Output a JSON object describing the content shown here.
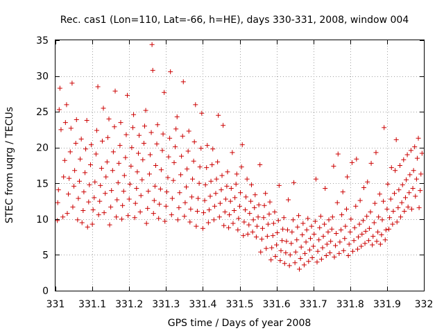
{
  "chart_data": {
    "type": "scatter",
    "title": "Rec. cas1 (Lon=110, Lat=-66, h=HE), days 330-331, 2008, window 004",
    "xlabel": "GPS time / Days of year 2008",
    "ylabel": "STEC from uqrg / TECUs",
    "xlim": [
      331,
      332
    ],
    "ylim": [
      0,
      35
    ],
    "xticks": [
      "331",
      "331.1",
      "331.2",
      "331.3",
      "331.4",
      "331.5",
      "331.6",
      "331.7",
      "331.8",
      "331.9",
      "332"
    ],
    "yticks": [
      "0",
      "5",
      "10",
      "15",
      "20",
      "25",
      "30",
      "35"
    ],
    "grid": true,
    "marker": "plus",
    "color": "#cc0000",
    "points": [
      [
        331.005,
        9.8
      ],
      [
        331.006,
        12.3
      ],
      [
        331.008,
        14.1
      ],
      [
        331.01,
        25.3
      ],
      [
        331.012,
        28.3
      ],
      [
        331.015,
        22.5
      ],
      [
        331.02,
        10.3
      ],
      [
        331.022,
        15.9
      ],
      [
        331.025,
        18.2
      ],
      [
        331.027,
        23.5
      ],
      [
        331.03,
        26.0
      ],
      [
        331.032,
        10.8
      ],
      [
        331.035,
        13.5
      ],
      [
        331.037,
        15.7
      ],
      [
        331.04,
        19.4
      ],
      [
        331.042,
        22.7
      ],
      [
        331.045,
        29.0
      ],
      [
        331.047,
        11.7
      ],
      [
        331.05,
        14.6
      ],
      [
        331.052,
        16.8
      ],
      [
        331.055,
        20.6
      ],
      [
        331.057,
        23.9
      ],
      [
        331.06,
        9.9
      ],
      [
        331.062,
        12.9
      ],
      [
        331.065,
        15.3
      ],
      [
        331.067,
        18.4
      ],
      [
        331.07,
        21.2
      ],
      [
        331.072,
        9.5
      ],
      [
        331.075,
        11.2
      ],
      [
        331.077,
        13.8
      ],
      [
        331.08,
        16.5
      ],
      [
        331.082,
        19.8
      ],
      [
        331.085,
        23.8
      ],
      [
        331.087,
        8.9
      ],
      [
        331.09,
        12.4
      ],
      [
        331.092,
        14.8
      ],
      [
        331.095,
        17.6
      ],
      [
        331.097,
        20.4
      ],
      [
        331.1,
        9.3
      ],
      [
        331.102,
        11.3
      ],
      [
        331.105,
        13.0
      ],
      [
        331.107,
        15.2
      ],
      [
        331.11,
        19.1
      ],
      [
        331.112,
        22.4
      ],
      [
        331.115,
        28.5
      ],
      [
        331.117,
        10.6
      ],
      [
        331.12,
        12.5
      ],
      [
        331.122,
        14.7
      ],
      [
        331.125,
        17.1
      ],
      [
        331.127,
        20.9
      ],
      [
        331.13,
        25.5
      ],
      [
        331.132,
        10.9
      ],
      [
        331.135,
        13.6
      ],
      [
        331.137,
        15.9
      ],
      [
        331.14,
        18.0
      ],
      [
        331.142,
        21.4
      ],
      [
        331.145,
        24.0
      ],
      [
        331.147,
        9.2
      ],
      [
        331.15,
        11.7
      ],
      [
        331.152,
        14.0
      ],
      [
        331.155,
        16.8
      ],
      [
        331.157,
        19.4
      ],
      [
        331.16,
        22.9
      ],
      [
        331.162,
        27.9
      ],
      [
        331.165,
        10.3
      ],
      [
        331.167,
        12.7
      ],
      [
        331.17,
        15.1
      ],
      [
        331.172,
        17.8
      ],
      [
        331.175,
        20.3
      ],
      [
        331.177,
        23.5
      ],
      [
        331.18,
        10.0
      ],
      [
        331.182,
        11.9
      ],
      [
        331.185,
        13.9
      ],
      [
        331.187,
        16.1
      ],
      [
        331.19,
        18.6
      ],
      [
        331.192,
        21.8
      ],
      [
        331.195,
        27.3
      ],
      [
        331.197,
        10.5
      ],
      [
        331.2,
        12.8
      ],
      [
        331.202,
        14.9
      ],
      [
        331.205,
        17.4
      ],
      [
        331.207,
        20.0
      ],
      [
        331.21,
        22.8
      ],
      [
        331.212,
        24.6
      ],
      [
        331.215,
        10.2
      ],
      [
        331.217,
        12.2
      ],
      [
        331.22,
        14.3
      ],
      [
        331.222,
        16.6
      ],
      [
        331.225,
        19.2
      ],
      [
        331.227,
        21.7
      ],
      [
        331.23,
        11.0
      ],
      [
        331.232,
        13.3
      ],
      [
        331.235,
        15.5
      ],
      [
        331.237,
        18.3
      ],
      [
        331.24,
        20.6
      ],
      [
        331.242,
        23.0
      ],
      [
        331.245,
        25.2
      ],
      [
        331.247,
        9.4
      ],
      [
        331.25,
        11.5
      ],
      [
        331.252,
        13.9
      ],
      [
        331.255,
        16.3
      ],
      [
        331.257,
        19.0
      ],
      [
        331.26,
        22.1
      ],
      [
        331.262,
        34.4
      ],
      [
        331.264,
        30.8
      ],
      [
        331.266,
        10.8
      ],
      [
        331.268,
        12.6
      ],
      [
        331.27,
        14.6
      ],
      [
        331.272,
        17.5
      ],
      [
        331.275,
        20.5
      ],
      [
        331.277,
        23.2
      ],
      [
        331.28,
        10.1
      ],
      [
        331.282,
        12.1
      ],
      [
        331.285,
        14.2
      ],
      [
        331.287,
        16.9
      ],
      [
        331.29,
        19.6
      ],
      [
        331.292,
        21.9
      ],
      [
        331.295,
        27.7
      ],
      [
        331.297,
        9.7
      ],
      [
        331.3,
        11.8
      ],
      [
        331.302,
        13.8
      ],
      [
        331.305,
        15.8
      ],
      [
        331.307,
        18.7
      ],
      [
        331.31,
        21.3
      ],
      [
        331.312,
        30.6
      ],
      [
        331.315,
        10.6
      ],
      [
        331.317,
        12.9
      ],
      [
        331.32,
        15.4
      ],
      [
        331.322,
        17.9
      ],
      [
        331.325,
        20.1
      ],
      [
        331.327,
        22.6
      ],
      [
        331.33,
        24.3
      ],
      [
        331.332,
        9.9
      ],
      [
        331.335,
        11.6
      ],
      [
        331.337,
        13.7
      ],
      [
        331.34,
        16.2
      ],
      [
        331.342,
        18.8
      ],
      [
        331.345,
        21.6
      ],
      [
        331.347,
        29.2
      ],
      [
        331.35,
        10.4
      ],
      [
        331.352,
        12.3
      ],
      [
        331.355,
        14.5
      ],
      [
        331.357,
        17.0
      ],
      [
        331.36,
        19.5
      ],
      [
        331.362,
        22.3
      ],
      [
        331.365,
        9.6
      ],
      [
        331.367,
        11.4
      ],
      [
        331.37,
        13.1
      ],
      [
        331.372,
        15.6
      ],
      [
        331.375,
        18.1
      ],
      [
        331.377,
        20.8
      ],
      [
        331.38,
        26.0
      ],
      [
        331.382,
        9.0
      ],
      [
        331.385,
        11.1
      ],
      [
        331.387,
        12.9
      ],
      [
        331.39,
        15.0
      ],
      [
        331.392,
        17.3
      ],
      [
        331.395,
        19.9
      ],
      [
        331.397,
        24.8
      ],
      [
        331.4,
        8.7
      ],
      [
        331.402,
        10.9
      ],
      [
        331.405,
        12.6
      ],
      [
        331.407,
        14.8
      ],
      [
        331.41,
        17.2
      ],
      [
        331.412,
        20.3
      ],
      [
        331.415,
        9.5
      ],
      [
        331.417,
        11.3
      ],
      [
        331.42,
        13.2
      ],
      [
        331.422,
        15.3
      ],
      [
        331.425,
        17.6
      ],
      [
        331.427,
        19.8
      ],
      [
        331.43,
        9.9
      ],
      [
        331.432,
        11.8
      ],
      [
        331.435,
        13.6
      ],
      [
        331.437,
        15.6
      ],
      [
        331.44,
        18.0
      ],
      [
        331.442,
        24.5
      ],
      [
        331.445,
        10.3
      ],
      [
        331.447,
        12.2
      ],
      [
        331.45,
        14.1
      ],
      [
        331.452,
        16.1
      ],
      [
        331.455,
        23.1
      ],
      [
        331.457,
        9.1
      ],
      [
        331.46,
        11.0
      ],
      [
        331.462,
        12.8
      ],
      [
        331.465,
        14.6
      ],
      [
        331.467,
        16.6
      ],
      [
        331.47,
        8.8
      ],
      [
        331.472,
        10.6
      ],
      [
        331.475,
        12.5
      ],
      [
        331.477,
        14.3
      ],
      [
        331.48,
        19.3
      ],
      [
        331.482,
        9.4
      ],
      [
        331.485,
        11.2
      ],
      [
        331.487,
        13.0
      ],
      [
        331.49,
        14.9
      ],
      [
        331.492,
        16.3
      ],
      [
        331.495,
        8.5
      ],
      [
        331.497,
        10.1
      ],
      [
        331.5,
        11.8
      ],
      [
        331.502,
        13.7
      ],
      [
        331.505,
        17.3
      ],
      [
        331.507,
        20.4
      ],
      [
        331.51,
        7.7
      ],
      [
        331.512,
        9.6
      ],
      [
        331.515,
        11.3
      ],
      [
        331.517,
        13.1
      ],
      [
        331.52,
        15.6
      ],
      [
        331.522,
        7.9
      ],
      [
        331.525,
        9.2
      ],
      [
        331.527,
        10.8
      ],
      [
        331.53,
        12.5
      ],
      [
        331.532,
        14.8
      ],
      [
        331.535,
        8.2
      ],
      [
        331.537,
        9.9
      ],
      [
        331.54,
        11.6
      ],
      [
        331.542,
        13.4
      ],
      [
        331.545,
        7.5
      ],
      [
        331.547,
        9.0
      ],
      [
        331.55,
        10.3
      ],
      [
        331.552,
        12.0
      ],
      [
        331.555,
        17.6
      ],
      [
        331.557,
        5.4
      ],
      [
        331.56,
        7.2
      ],
      [
        331.562,
        8.7
      ],
      [
        331.565,
        10.2
      ],
      [
        331.567,
        11.9
      ],
      [
        331.57,
        13.6
      ],
      [
        331.572,
        5.9
      ],
      [
        331.575,
        7.6
      ],
      [
        331.577,
        9.3
      ],
      [
        331.58,
        10.7
      ],
      [
        331.582,
        12.4
      ],
      [
        331.585,
        4.3
      ],
      [
        331.587,
        6.0
      ],
      [
        331.59,
        7.7
      ],
      [
        331.592,
        9.4
      ],
      [
        331.595,
        11.0
      ],
      [
        331.597,
        4.8
      ],
      [
        331.6,
        6.4
      ],
      [
        331.602,
        8.1
      ],
      [
        331.605,
        9.8
      ],
      [
        331.607,
        14.7
      ],
      [
        331.61,
        4.2
      ],
      [
        331.612,
        5.6
      ],
      [
        331.615,
        7.0
      ],
      [
        331.617,
        8.6
      ],
      [
        331.62,
        10.2
      ],
      [
        331.622,
        3.8
      ],
      [
        331.625,
        5.3
      ],
      [
        331.627,
        6.9
      ],
      [
        331.63,
        8.5
      ],
      [
        331.632,
        12.7
      ],
      [
        331.635,
        3.5
      ],
      [
        331.637,
        5.0
      ],
      [
        331.64,
        6.6
      ],
      [
        331.642,
        8.2
      ],
      [
        331.645,
        9.9
      ],
      [
        331.647,
        15.1
      ],
      [
        331.65,
        3.9
      ],
      [
        331.652,
        5.4
      ],
      [
        331.655,
        7.1
      ],
      [
        331.657,
        8.9
      ],
      [
        331.66,
        10.5
      ],
      [
        331.662,
        3.0
      ],
      [
        331.665,
        4.5
      ],
      [
        331.667,
        6.1
      ],
      [
        331.67,
        7.8
      ],
      [
        331.672,
        9.4
      ],
      [
        331.675,
        3.6
      ],
      [
        331.677,
        5.2
      ],
      [
        331.68,
        6.8
      ],
      [
        331.682,
        8.5
      ],
      [
        331.685,
        10.1
      ],
      [
        331.687,
        4.1
      ],
      [
        331.69,
        5.7
      ],
      [
        331.692,
        7.3
      ],
      [
        331.695,
        9.0
      ],
      [
        331.697,
        4.6
      ],
      [
        331.7,
        6.2
      ],
      [
        331.702,
        7.9
      ],
      [
        331.705,
        9.7
      ],
      [
        331.707,
        15.6
      ],
      [
        331.71,
        4.0
      ],
      [
        331.712,
        5.5
      ],
      [
        331.715,
        7.1
      ],
      [
        331.717,
        8.8
      ],
      [
        331.72,
        10.4
      ],
      [
        331.722,
        4.4
      ],
      [
        331.725,
        6.0
      ],
      [
        331.727,
        7.6
      ],
      [
        331.73,
        9.3
      ],
      [
        331.732,
        14.3
      ],
      [
        331.735,
        4.9
      ],
      [
        331.737,
        6.5
      ],
      [
        331.74,
        8.2
      ],
      [
        331.742,
        9.9
      ],
      [
        331.745,
        5.3
      ],
      [
        331.747,
        6.9
      ],
      [
        331.75,
        8.6
      ],
      [
        331.752,
        10.3
      ],
      [
        331.755,
        17.4
      ],
      [
        331.757,
        4.7
      ],
      [
        331.76,
        6.3
      ],
      [
        331.762,
        8.0
      ],
      [
        331.765,
        12.3
      ],
      [
        331.767,
        19.1
      ],
      [
        331.77,
        5.2
      ],
      [
        331.772,
        6.8
      ],
      [
        331.775,
        8.5
      ],
      [
        331.777,
        10.6
      ],
      [
        331.78,
        13.8
      ],
      [
        331.782,
        5.6
      ],
      [
        331.785,
        7.3
      ],
      [
        331.787,
        9.0
      ],
      [
        331.79,
        11.4
      ],
      [
        331.792,
        15.9
      ],
      [
        331.795,
        4.9
      ],
      [
        331.797,
        6.5
      ],
      [
        331.8,
        8.2
      ],
      [
        331.802,
        10.0
      ],
      [
        331.805,
        17.9
      ],
      [
        331.807,
        5.5
      ],
      [
        331.81,
        7.0
      ],
      [
        331.812,
        8.8
      ],
      [
        331.815,
        11.8
      ],
      [
        331.817,
        18.4
      ],
      [
        331.82,
        5.8
      ],
      [
        331.822,
        7.5
      ],
      [
        331.825,
        9.3
      ],
      [
        331.827,
        12.6
      ],
      [
        331.83,
        6.2
      ],
      [
        331.832,
        7.9
      ],
      [
        331.835,
        9.8
      ],
      [
        331.837,
        14.4
      ],
      [
        331.84,
        6.6
      ],
      [
        331.842,
        8.3
      ],
      [
        331.845,
        10.4
      ],
      [
        331.847,
        15.2
      ],
      [
        331.85,
        7.0
      ],
      [
        331.852,
        8.7
      ],
      [
        331.855,
        11.0
      ],
      [
        331.857,
        17.8
      ],
      [
        331.86,
        6.4
      ],
      [
        331.862,
        7.6
      ],
      [
        331.865,
        9.5
      ],
      [
        331.867,
        12.2
      ],
      [
        331.87,
        19.3
      ],
      [
        331.872,
        6.9
      ],
      [
        331.875,
        8.2
      ],
      [
        331.877,
        10.3
      ],
      [
        331.88,
        13.5
      ],
      [
        331.882,
        6.5
      ],
      [
        331.885,
        7.8
      ],
      [
        331.887,
        9.9
      ],
      [
        331.89,
        12.5
      ],
      [
        331.892,
        22.8
      ],
      [
        331.895,
        7.1
      ],
      [
        331.897,
        8.5
      ],
      [
        331.9,
        11.4
      ],
      [
        331.902,
        14.9
      ],
      [
        331.905,
        8.6
      ],
      [
        331.907,
        10.2
      ],
      [
        331.91,
        12.8
      ],
      [
        331.912,
        17.2
      ],
      [
        331.915,
        9.3
      ],
      [
        331.917,
        11.1
      ],
      [
        331.92,
        13.6
      ],
      [
        331.922,
        16.8
      ],
      [
        331.925,
        21.1
      ],
      [
        331.927,
        9.6
      ],
      [
        331.93,
        11.6
      ],
      [
        331.932,
        14.1
      ],
      [
        331.935,
        17.5
      ],
      [
        331.937,
        10.3
      ],
      [
        331.94,
        12.3
      ],
      [
        331.942,
        14.8
      ],
      [
        331.945,
        18.3
      ],
      [
        331.947,
        11.1
      ],
      [
        331.95,
        13.0
      ],
      [
        331.952,
        15.5
      ],
      [
        331.955,
        19.0
      ],
      [
        331.957,
        11.7
      ],
      [
        331.96,
        13.7
      ],
      [
        331.962,
        16.2
      ],
      [
        331.965,
        19.6
      ],
      [
        331.967,
        11.4
      ],
      [
        331.97,
        14.3
      ],
      [
        331.972,
        16.8
      ],
      [
        331.975,
        20.1
      ],
      [
        331.977,
        13.2
      ],
      [
        331.98,
        15.6
      ],
      [
        331.982,
        18.5
      ],
      [
        331.985,
        21.3
      ],
      [
        331.987,
        11.6
      ],
      [
        331.99,
        14.0
      ],
      [
        331.992,
        16.3
      ],
      [
        331.995,
        19.2
      ]
    ]
  }
}
